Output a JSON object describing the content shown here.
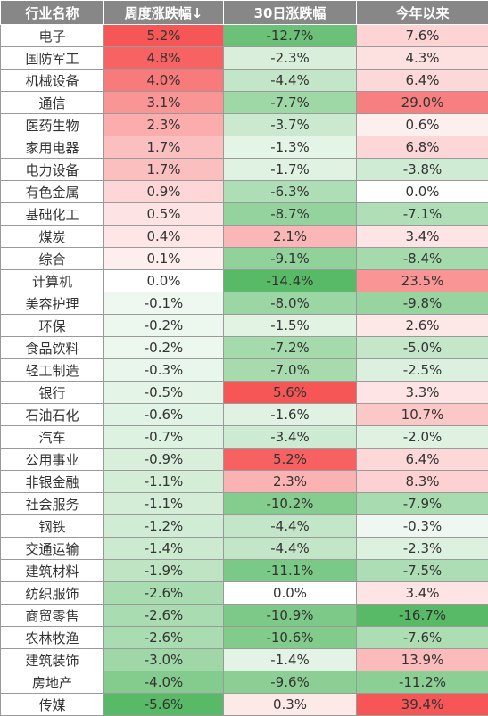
{
  "headers": [
    "行业名称",
    "周度涨跌幅↓",
    "30日涨跌幅",
    "今年以来"
  ],
  "palette": {
    "positive_rgb": [
      246,
      86,
      86
    ],
    "negative_rgb": [
      88,
      186,
      102
    ],
    "base_rgb": [
      255,
      255,
      255
    ]
  },
  "rows": [
    {
      "name": "电子",
      "weekly": "5.2%",
      "d30": "-12.7%",
      "ytd": "7.6%"
    },
    {
      "name": "国防军工",
      "weekly": "4.8%",
      "d30": "-2.3%",
      "ytd": "4.3%"
    },
    {
      "name": "机械设备",
      "weekly": "4.0%",
      "d30": "-4.4%",
      "ytd": "6.4%"
    },
    {
      "name": "通信",
      "weekly": "3.1%",
      "d30": "-7.7%",
      "ytd": "29.0%"
    },
    {
      "name": "医药生物",
      "weekly": "2.3%",
      "d30": "-3.7%",
      "ytd": "0.6%"
    },
    {
      "name": "家用电器",
      "weekly": "1.7%",
      "d30": "-1.3%",
      "ytd": "6.8%"
    },
    {
      "name": "电力设备",
      "weekly": "1.7%",
      "d30": "-1.7%",
      "ytd": "-3.8%"
    },
    {
      "name": "有色金属",
      "weekly": "0.9%",
      "d30": "-6.3%",
      "ytd": "0.0%"
    },
    {
      "name": "基础化工",
      "weekly": "0.5%",
      "d30": "-8.7%",
      "ytd": "-7.1%"
    },
    {
      "name": "煤炭",
      "weekly": "0.4%",
      "d30": "2.1%",
      "ytd": "3.4%"
    },
    {
      "name": "综合",
      "weekly": "0.1%",
      "d30": "-9.1%",
      "ytd": "-8.4%"
    },
    {
      "name": "计算机",
      "weekly": "0.0%",
      "d30": "-14.4%",
      "ytd": "23.5%"
    },
    {
      "name": "美容护理",
      "weekly": "-0.1%",
      "d30": "-8.0%",
      "ytd": "-9.8%"
    },
    {
      "name": "环保",
      "weekly": "-0.2%",
      "d30": "-1.5%",
      "ytd": "2.6%"
    },
    {
      "name": "食品饮料",
      "weekly": "-0.2%",
      "d30": "-7.2%",
      "ytd": "-5.0%"
    },
    {
      "name": "轻工制造",
      "weekly": "-0.3%",
      "d30": "-7.0%",
      "ytd": "-2.5%"
    },
    {
      "name": "银行",
      "weekly": "-0.5%",
      "d30": "5.6%",
      "ytd": "3.3%"
    },
    {
      "name": "石油石化",
      "weekly": "-0.6%",
      "d30": "-1.6%",
      "ytd": "10.7%"
    },
    {
      "name": "汽车",
      "weekly": "-0.7%",
      "d30": "-3.4%",
      "ytd": "-2.0%"
    },
    {
      "name": "公用事业",
      "weekly": "-0.9%",
      "d30": "5.2%",
      "ytd": "6.4%"
    },
    {
      "name": "非银金融",
      "weekly": "-1.1%",
      "d30": "2.3%",
      "ytd": "8.3%"
    },
    {
      "name": "社会服务",
      "weekly": "-1.1%",
      "d30": "-10.2%",
      "ytd": "-7.9%"
    },
    {
      "name": "钢铁",
      "weekly": "-1.2%",
      "d30": "-4.4%",
      "ytd": "-0.3%"
    },
    {
      "name": "交通运输",
      "weekly": "-1.4%",
      "d30": "-4.4%",
      "ytd": "-2.3%"
    },
    {
      "name": "建筑材料",
      "weekly": "-1.9%",
      "d30": "-11.1%",
      "ytd": "-7.5%"
    },
    {
      "name": "纺织服饰",
      "weekly": "-2.6%",
      "d30": "0.0%",
      "ytd": "3.4%"
    },
    {
      "name": "商贸零售",
      "weekly": "-2.6%",
      "d30": "-10.9%",
      "ytd": "-16.7%"
    },
    {
      "name": "农林牧渔",
      "weekly": "-2.6%",
      "d30": "-10.6%",
      "ytd": "-7.6%"
    },
    {
      "name": "建筑装饰",
      "weekly": "-3.0%",
      "d30": "-1.4%",
      "ytd": "13.9%"
    },
    {
      "name": "房地产",
      "weekly": "-4.0%",
      "d30": "-9.6%",
      "ytd": "-11.2%"
    },
    {
      "name": "传媒",
      "weekly": "-5.6%",
      "d30": "0.3%",
      "ytd": "39.4%"
    }
  ]
}
